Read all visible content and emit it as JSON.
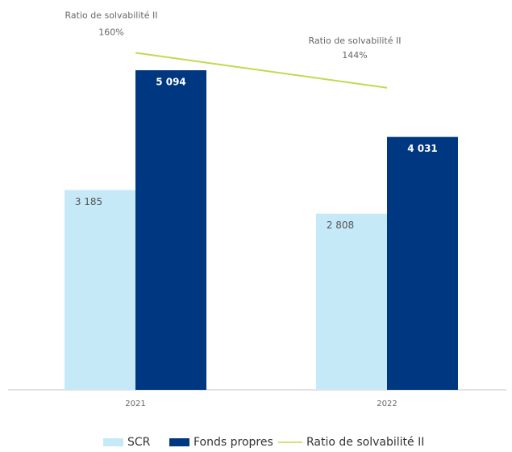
{
  "chart_data": {
    "type": "bar",
    "categories": [
      "2021",
      "2022"
    ],
    "ylim": [
      0,
      6000
    ],
    "y2lim": [
      6,
      178
    ],
    "series": [
      {
        "name": "SCR",
        "color": "#c6e9f8",
        "values": [
          3185,
          2808
        ],
        "value_labels": [
          "3 185",
          "2 808"
        ]
      },
      {
        "name": "Fonds propres",
        "color": "#003781",
        "values": [
          5094,
          4031
        ],
        "value_labels": [
          "5 094",
          "4 031"
        ]
      },
      {
        "name": "Ratio de solvabilité II",
        "type": "line",
        "axis": "y2",
        "color": "#c2d94f",
        "values": [
          160,
          144
        ],
        "value_labels": [
          "160%",
          "144%"
        ]
      }
    ],
    "legend": "bottom"
  }
}
